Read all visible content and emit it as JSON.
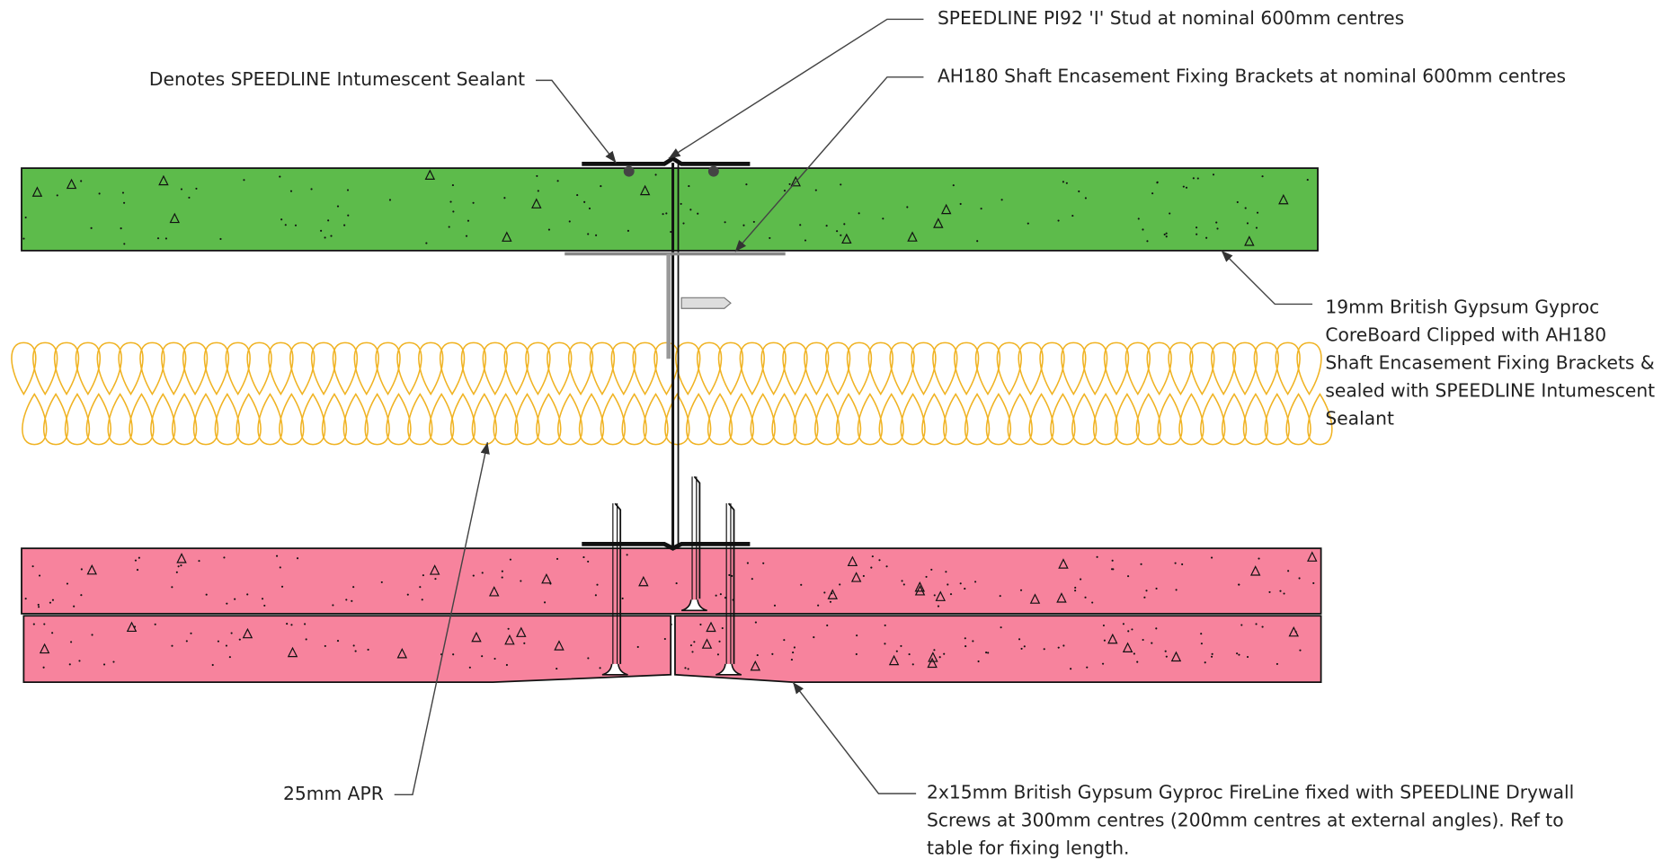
{
  "labels": {
    "stud": "SPEEDLINE PI92 'I' Stud at nominal 600mm centres",
    "brackets": "AH180 Shaft Encasement Fixing Brackets at nominal 600mm centres",
    "sealant": "Denotes SPEEDLINE Intumescent Sealant",
    "coreboard": [
      "19mm British Gypsum Gyproc",
      "CoreBoard Clipped with AH180",
      "Shaft Encasement Fixing Brackets &",
      "sealed with SPEEDLINE Intumescent",
      "Sealant"
    ],
    "apr": "25mm APR",
    "fireline": [
      "2x15mm British Gypsum Gyproc FireLine fixed with SPEEDLINE Drywall",
      "Screws at 300mm centres (200mm centres at external angles). Ref to",
      "table for fixing length."
    ]
  }
}
